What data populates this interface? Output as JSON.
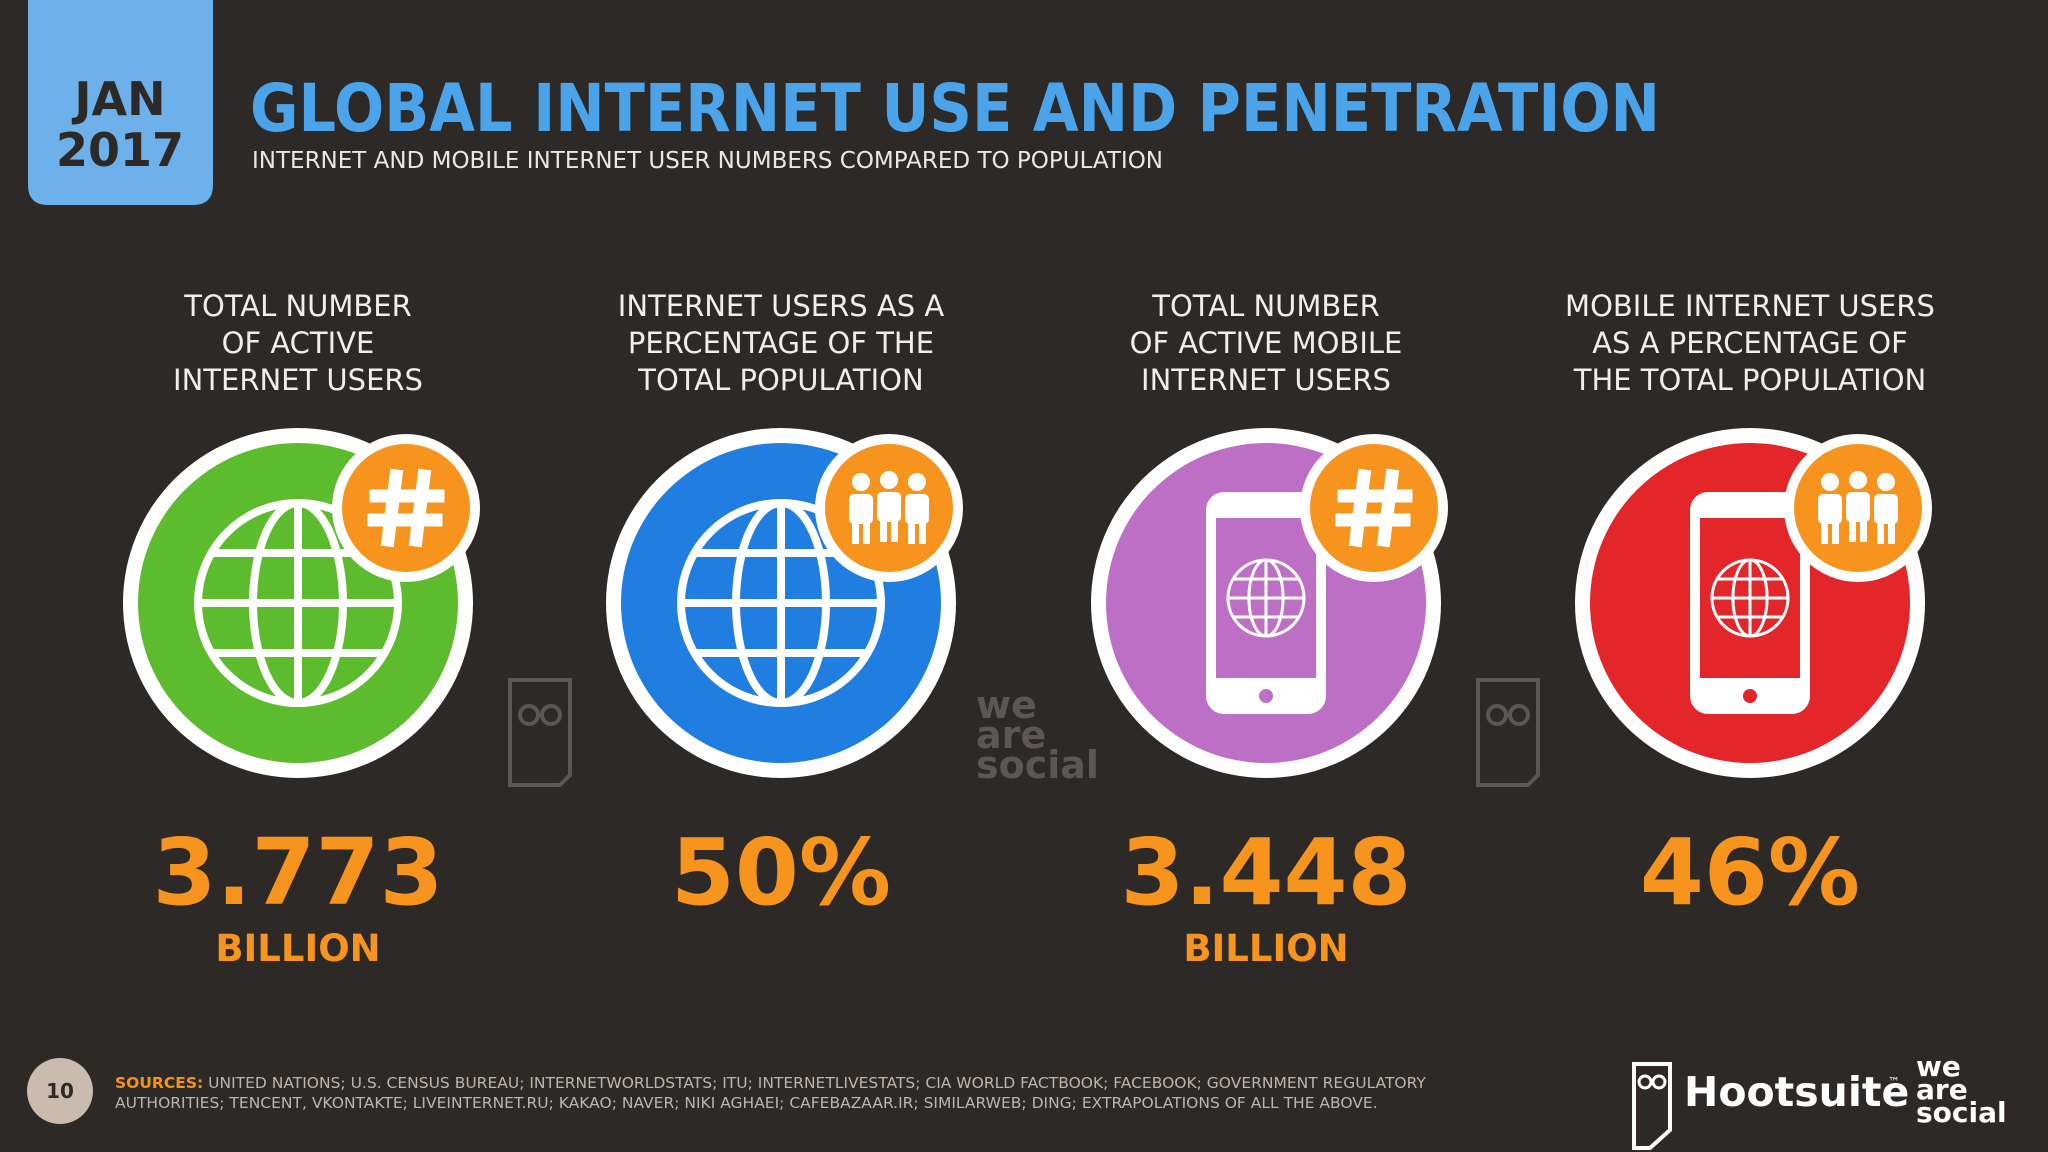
{
  "header": {
    "date": [
      "JAN",
      "2017"
    ],
    "title": "GLOBAL INTERNET USE AND PENETRATION",
    "subtitle": "INTERNET AND MOBILE INTERNET USER NUMBERS COMPARED TO POPULATION"
  },
  "stats": [
    {
      "label": [
        "TOTAL NUMBER",
        "OF ACTIVE",
        "INTERNET USERS"
      ],
      "value": "3.773",
      "unit": "BILLION"
    },
    {
      "label": [
        "INTERNET USERS AS A",
        "PERCENTAGE OF THE",
        "TOTAL POPULATION"
      ],
      "value": "50%"
    },
    {
      "label": [
        "TOTAL NUMBER",
        "OF ACTIVE MOBILE",
        "INTERNET USERS"
      ],
      "value": "3.448",
      "unit": "BILLION"
    },
    {
      "label": [
        "MOBILE INTERNET USERS",
        "AS A PERCENTAGE OF",
        "THE TOTAL POPULATION"
      ],
      "value": "46%"
    }
  ],
  "watermark": [
    "we",
    "are",
    "social"
  ],
  "footer": {
    "page": "10",
    "sources_label": "SOURCES:",
    "sources": [
      "UNITED NATIONS; U.S. CENSUS BUREAU; INTERNETWORLDSTATS; ITU; INTERNETLIVESTATS; CIA WORLD FACTBOOK; FACEBOOK; GOVERNMENT REGULATORY",
      "AUTHORITIES; TENCENT, VKONTAKTE; LIVEINTERNET.RU; KAKAO; NAVER; NIKI AGHAEI; CAFEBAZAAR.IR; SIMILARWEB; DING; EXTRAPOLATIONS OF ALL THE ABOVE."
    ],
    "brand": "Hootsuite",
    "trademark": "™",
    "brand2": [
      "we",
      "are",
      "social"
    ]
  }
}
